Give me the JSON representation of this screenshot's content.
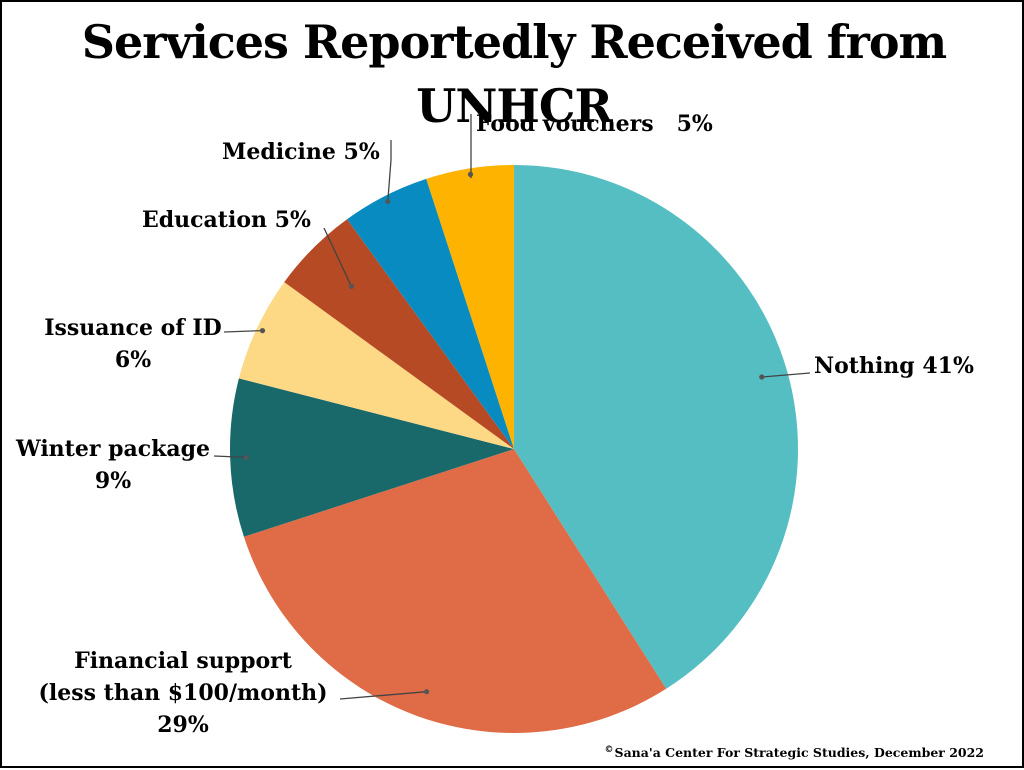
{
  "chart_data": {
    "type": "pie",
    "title": "Services Reportedly Received from UNHCR",
    "slices": [
      {
        "key": "nothing",
        "label": "Nothing",
        "value": 41,
        "pct": "41%",
        "color": "#54BEC2"
      },
      {
        "key": "financial",
        "label": "Financial support (less than $100/month)",
        "line1": "Financial support",
        "line2": "(less than $100/month)",
        "value": 29,
        "pct": "29%",
        "color": "#DF6C46"
      },
      {
        "key": "winter",
        "label": "Winter package",
        "value": 9,
        "pct": "9%",
        "color": "#19686A"
      },
      {
        "key": "id",
        "label": "Issuance of ID",
        "value": 6,
        "pct": "6%",
        "color": "#FDD885"
      },
      {
        "key": "education",
        "label": "Education",
        "value": 5,
        "pct": "5%",
        "color": "#B54A25"
      },
      {
        "key": "medicine",
        "label": "Medicine",
        "value": 5,
        "pct": "5%",
        "color": "#078BC1"
      },
      {
        "key": "food",
        "label": "Food vouchers",
        "value": 5,
        "pct": "5%",
        "color": "#FDB300"
      }
    ]
  },
  "credit": {
    "symbol": "©",
    "text": "Sana'a Center For Strategic Studies, December 2022"
  }
}
